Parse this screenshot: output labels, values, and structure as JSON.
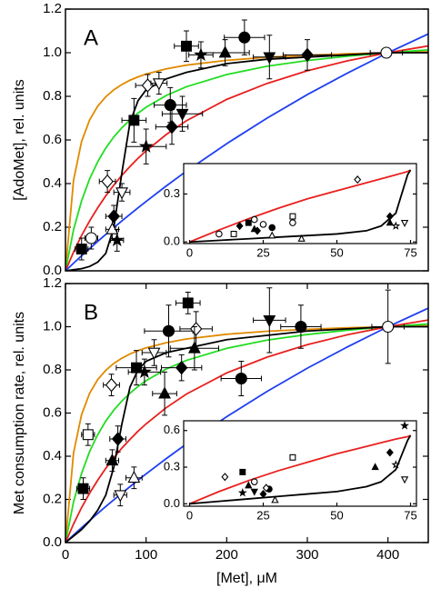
{
  "chart_data": [
    {
      "type": "line",
      "label": "A",
      "y_label": "[AdoMet], rel. units",
      "xlim": [
        0,
        450
      ],
      "ylim": [
        0,
        1.2
      ],
      "yticks": [
        {
          "value": 0,
          "label": "0.0"
        },
        0.2,
        0.4,
        0.6,
        0.8,
        {
          "value": 1,
          "label": "1.0"
        },
        1.2
      ],
      "x": [
        0,
        10,
        20,
        30,
        40,
        50,
        60,
        70,
        80,
        90,
        100,
        125,
        150,
        200,
        250,
        300,
        350,
        400,
        450
      ],
      "series": [
        {
          "color": "#e08a00",
          "values": [
            0,
            0.415,
            0.593,
            0.692,
            0.755,
            0.798,
            0.83,
            0.854,
            0.874,
            0.889,
            0.902,
            0.926,
            0.943,
            0.965,
            0.979,
            0.988,
            0.995,
            1.0,
            1.004
          ]
        },
        {
          "color": "#22dd22",
          "values": [
            0,
            0.188,
            0.321,
            0.422,
            0.5,
            0.563,
            0.614,
            0.656,
            0.692,
            0.723,
            0.75,
            0.804,
            0.844,
            0.9,
            0.938,
            0.964,
            0.984,
            1.0,
            1.013
          ]
        },
        {
          "color": "#e8201e",
          "values": [
            0,
            0.086,
            0.162,
            0.229,
            0.289,
            0.344,
            0.393,
            0.438,
            0.478,
            0.516,
            0.55,
            0.625,
            0.688,
            0.786,
            0.859,
            0.917,
            0.963,
            1.0,
            1.031
          ]
        },
        {
          "color": "#1f3ff0",
          "values": [
            0,
            0.035,
            0.069,
            0.102,
            0.135,
            0.167,
            0.198,
            0.229,
            0.259,
            0.289,
            0.318,
            0.389,
            0.457,
            0.583,
            0.7,
            0.808,
            0.907,
            1.0,
            1.086
          ]
        },
        {
          "color": "#000000",
          "values": [
            0,
            0.005,
            0.01,
            0.02,
            0.04,
            0.08,
            0.2,
            0.45,
            0.68,
            0.78,
            0.83,
            0.88,
            0.91,
            0.95,
            0.97,
            0.98,
            0.99,
            1.0,
            1.0
          ]
        }
      ],
      "points": {
        "markers": [
          "filled-square",
          "filled-circle",
          "filled-up",
          "filled-star",
          "filled-diamond",
          "filled-down",
          "filled-circle",
          "filled-down",
          "filled-diamond",
          "filled-star",
          "filled-square",
          "open-diamond",
          "open-down",
          "open-diamond",
          "open-down",
          "filled-diamond",
          "open-up",
          "filled-square",
          "open-circle",
          "open-circle",
          "filled-star"
        ],
        "x": [
          150,
          222,
          198,
          168,
          300,
          253,
          130,
          145,
          132,
          100,
          85,
          102,
          116,
          52,
          70,
          60,
          58,
          20,
          32,
          398,
          64
        ],
        "values": [
          1.03,
          1.07,
          1.0,
          0.99,
          0.99,
          0.98,
          0.76,
          0.72,
          0.66,
          0.57,
          0.69,
          0.85,
          0.86,
          0.41,
          0.36,
          0.25,
          0.19,
          0.1,
          0.15,
          1.0,
          0.14
        ],
        "xerr": [
          15,
          25,
          30,
          15,
          30,
          20,
          20,
          25,
          20,
          25,
          15,
          15,
          10,
          10,
          10,
          10,
          8,
          8,
          8,
          20,
          8
        ],
        "yerr": [
          0.07,
          0.08,
          0.06,
          0.06,
          0.07,
          0.1,
          0.08,
          0.08,
          0.08,
          0.08,
          0.1,
          0.05,
          0.05,
          0.05,
          0.04,
          0.05,
          0.05,
          0.05,
          0.05,
          0.02,
          0.05
        ]
      }
    },
    {
      "type": "line",
      "label": "B",
      "y_label": "Met consumption rate, rel. units",
      "x_label": "[Met], μM",
      "xlim": [
        0,
        450
      ],
      "ylim": [
        0,
        1.2
      ],
      "xticks": [
        0,
        100,
        200,
        300,
        400
      ],
      "yticks": [
        {
          "value": 0,
          "label": "0.0"
        },
        0.2,
        0.4,
        0.6,
        0.8,
        {
          "value": 1,
          "label": "1.0"
        },
        1.2
      ],
      "x": [
        0,
        10,
        20,
        30,
        40,
        50,
        60,
        70,
        80,
        90,
        100,
        125,
        150,
        200,
        250,
        300,
        350,
        400,
        450
      ],
      "series": [
        {
          "color": "#e08a00",
          "values": [
            0,
            0.415,
            0.593,
            0.692,
            0.755,
            0.798,
            0.83,
            0.854,
            0.874,
            0.889,
            0.902,
            0.926,
            0.943,
            0.965,
            0.979,
            0.988,
            0.995,
            1.0,
            1.004
          ]
        },
        {
          "color": "#22dd22",
          "values": [
            0,
            0.188,
            0.321,
            0.422,
            0.5,
            0.563,
            0.614,
            0.656,
            0.692,
            0.723,
            0.75,
            0.804,
            0.844,
            0.9,
            0.938,
            0.964,
            0.984,
            1.0,
            1.013
          ]
        },
        {
          "color": "#e8201e",
          "values": [
            0,
            0.086,
            0.162,
            0.229,
            0.289,
            0.344,
            0.393,
            0.438,
            0.478,
            0.516,
            0.55,
            0.625,
            0.688,
            0.786,
            0.859,
            0.917,
            0.963,
            1.0,
            1.031
          ]
        },
        {
          "color": "#1f3ff0",
          "values": [
            0,
            0.035,
            0.069,
            0.102,
            0.135,
            0.167,
            0.198,
            0.229,
            0.259,
            0.289,
            0.318,
            0.389,
            0.457,
            0.583,
            0.7,
            0.808,
            0.907,
            1.0,
            1.086
          ]
        },
        {
          "color": "#000000",
          "values": [
            0,
            0.03,
            0.06,
            0.1,
            0.15,
            0.22,
            0.35,
            0.55,
            0.72,
            0.8,
            0.84,
            0.88,
            0.9,
            0.94,
            0.96,
            0.98,
            0.99,
            1.0,
            1.0
          ]
        }
      ],
      "points": {
        "markers": [
          "filled-square",
          "filled-circle",
          "open-diamond",
          "filled-down",
          "filled-circle",
          "filled-up",
          "filled-star",
          "filled-square",
          "filled-diamond",
          "filled-up",
          "filled-circle",
          "open-diamond",
          "open-down",
          "filled-diamond",
          "open-up",
          "open-down",
          "filled-square",
          "open-square",
          "open-circle",
          "filled-up"
        ],
        "x": [
          152,
          128,
          162,
          253,
          292,
          160,
          98,
          88,
          144,
          123,
          218,
          57,
          110,
          65,
          85,
          68,
          22,
          28,
          400,
          58
        ],
        "values": [
          1.11,
          0.98,
          0.99,
          1.03,
          1.0,
          0.9,
          0.79,
          0.81,
          0.81,
          0.69,
          0.76,
          0.73,
          0.88,
          0.48,
          0.3,
          0.22,
          0.25,
          0.5,
          1.0,
          0.38
        ],
        "xerr": [
          15,
          30,
          20,
          20,
          25,
          30,
          20,
          25,
          25,
          15,
          25,
          10,
          15,
          10,
          10,
          8,
          8,
          8,
          20,
          8
        ],
        "yerr": [
          0.05,
          0.12,
          0.08,
          0.15,
          0.1,
          0.1,
          0.06,
          0.08,
          0.06,
          0.1,
          0.08,
          0.05,
          0.06,
          0.06,
          0.05,
          0.05,
          0.05,
          0.05,
          0.17,
          0.05
        ]
      }
    },
    {
      "type": "line",
      "xlim": [
        -2,
        77
      ],
      "ylim": [
        -0.01,
        0.49
      ],
      "xticks": [
        0,
        25,
        50,
        75
      ],
      "yticks": [
        {
          "value": 0,
          "label": "0.0"
        },
        0.3
      ],
      "x": [
        0,
        10,
        20,
        30,
        40,
        50,
        60,
        65,
        70,
        72,
        74,
        75
      ],
      "series": [
        {
          "color": "#e8201e",
          "values": [
            0,
            0.075,
            0.145,
            0.21,
            0.27,
            0.32,
            0.37,
            0.395,
            0.42,
            0.43,
            0.44,
            0.45
          ]
        },
        {
          "color": "#000000",
          "values": [
            0,
            0.01,
            0.02,
            0.03,
            0.04,
            0.05,
            0.07,
            0.1,
            0.18,
            0.3,
            0.42,
            0.45
          ]
        }
      ],
      "points": {
        "markers": [
          "open-circle",
          "open-square",
          "filled-diamond",
          "filled-square",
          "open-circle",
          "filled-up",
          "open-circle",
          "filled-diamond",
          "filled-circle",
          "open-up",
          "open-square",
          "open-circle",
          "open-up",
          "open-diamond",
          "filled-diamond",
          "filled-up",
          "open-star",
          "open-down"
        ],
        "x": [
          10,
          15,
          17,
          20,
          22,
          22,
          25,
          23,
          28,
          28,
          35,
          35,
          38,
          57,
          68,
          68,
          70,
          73
        ],
        "values": [
          0.05,
          0.05,
          0.1,
          0.12,
          0.14,
          0.08,
          0.11,
          0.07,
          0.09,
          0.04,
          0.16,
          0.12,
          0.02,
          0.39,
          0.16,
          0.12,
          0.1,
          0.12
        ]
      }
    },
    {
      "type": "line",
      "xlim": [
        -2,
        77
      ],
      "ylim": [
        -0.02,
        0.68
      ],
      "xticks": [
        0,
        25,
        50,
        75
      ],
      "yticks": [
        {
          "value": 0,
          "label": "0.0"
        },
        0.3,
        0.6
      ],
      "x": [
        0,
        10,
        20,
        30,
        40,
        50,
        60,
        65,
        70,
        72,
        74,
        75
      ],
      "series": [
        {
          "color": "#e8201e",
          "values": [
            0,
            0.1,
            0.19,
            0.27,
            0.34,
            0.41,
            0.47,
            0.5,
            0.53,
            0.54,
            0.55,
            0.56
          ]
        },
        {
          "color": "#000000",
          "values": [
            0,
            0.02,
            0.04,
            0.06,
            0.08,
            0.1,
            0.14,
            0.18,
            0.28,
            0.4,
            0.52,
            0.56
          ]
        }
      ],
      "points": {
        "markers": [
          "open-diamond",
          "filled-square",
          "filled-up",
          "open-circle",
          "filled-star",
          "filled-down",
          "filled-diamond",
          "filled-circle",
          "open-diamond",
          "open-up",
          "open-square",
          "filled-up",
          "filled-diamond",
          "open-star",
          "open-down",
          "filled-star"
        ],
        "x": [
          12,
          18,
          20,
          22,
          18,
          22,
          25,
          27,
          26,
          29,
          35,
          63,
          68,
          70,
          73,
          73
        ],
        "values": [
          0.22,
          0.26,
          0.15,
          0.18,
          0.09,
          0.1,
          0.08,
          0.12,
          0.13,
          0.03,
          0.38,
          0.3,
          0.42,
          0.32,
          0.2,
          0.64
        ]
      }
    }
  ]
}
